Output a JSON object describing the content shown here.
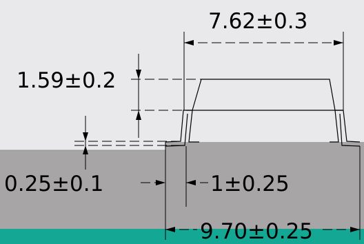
{
  "colors": {
    "background_light": "#e9e9eb",
    "board": "#a7a5a6",
    "board_edge": "#8f8e8f",
    "strip": "#14a894",
    "line": "#000000"
  },
  "dimensions": {
    "body_width": "7.62±0.3",
    "body_height": "1.59±0.2",
    "standoff": "0.25±0.1",
    "lead_length": "1±0.25",
    "overall_width": "9.70±0.25"
  }
}
